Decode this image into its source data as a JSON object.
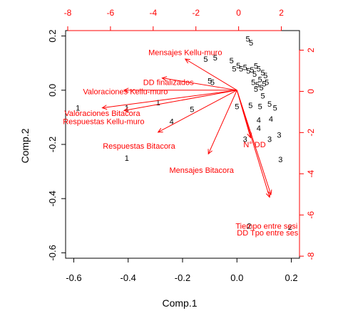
{
  "chart_data": {
    "type": "scatter",
    "subtype": "biplot",
    "title": "",
    "xlabel": "Comp.1",
    "ylabel": "Comp.2",
    "xlim": [
      -0.63,
      0.23
    ],
    "ylim": [
      -0.62,
      0.22
    ],
    "xticks": [
      "-0.6",
      "-0.4",
      "-0.2",
      "0.0",
      "0.2"
    ],
    "xtick_values": [
      -0.6,
      -0.4,
      -0.2,
      0.0,
      0.2
    ],
    "yticks": [
      "-0.6",
      "-0.4",
      "-0.2",
      "0.0",
      "0.2"
    ],
    "ytick_values": [
      -0.6,
      -0.4,
      -0.2,
      0.0,
      0.2
    ],
    "top_xlim": [
      -8.1,
      2.85
    ],
    "right_ylim": [
      -8.1,
      2.95
    ],
    "top_xticks": [
      "-8",
      "-6",
      "-4",
      "-2",
      "0",
      "2"
    ],
    "top_xtick_values": [
      -8,
      -6,
      -4,
      -2,
      0,
      2
    ],
    "right_yticks": [
      "-8",
      "-6",
      "-4",
      "-2",
      "0",
      "2"
    ],
    "right_ytick_values": [
      -8,
      -6,
      -4,
      -2,
      0,
      2
    ],
    "observation_color": "#000000",
    "loading_color": "#ff0000",
    "observations": [
      {
        "x": -0.585,
        "y": -0.065,
        "label": "1"
      },
      {
        "x": -0.405,
        "y": -0.065,
        "label": "1"
      },
      {
        "x": -0.29,
        "y": -0.045,
        "label": "1"
      },
      {
        "x": -0.405,
        "y": -0.25,
        "label": "1"
      },
      {
        "x": -0.24,
        "y": -0.115,
        "label": "4"
      },
      {
        "x": -0.165,
        "y": -0.07,
        "label": "5"
      },
      {
        "x": -0.115,
        "y": 0.115,
        "label": "5"
      },
      {
        "x": -0.08,
        "y": 0.12,
        "label": "5"
      },
      {
        "x": -0.02,
        "y": 0.11,
        "label": "5"
      },
      {
        "x": -0.01,
        "y": 0.08,
        "label": "5"
      },
      {
        "x": 0.005,
        "y": 0.092,
        "label": "5"
      },
      {
        "x": 0.015,
        "y": 0.08,
        "label": "5"
      },
      {
        "x": 0.03,
        "y": 0.085,
        "label": "5"
      },
      {
        "x": 0.042,
        "y": 0.072,
        "label": "5"
      },
      {
        "x": -0.1,
        "y": 0.035,
        "label": "5"
      },
      {
        "x": -0.09,
        "y": 0.03,
        "label": "5"
      },
      {
        "x": 0.0,
        "y": -0.06,
        "label": "5"
      },
      {
        "x": 0.04,
        "y": 0.19,
        "label": "5"
      },
      {
        "x": 0.052,
        "y": 0.175,
        "label": "5"
      },
      {
        "x": 0.055,
        "y": 0.075,
        "label": "5"
      },
      {
        "x": 0.07,
        "y": 0.09,
        "label": "5"
      },
      {
        "x": 0.065,
        "y": 0.06,
        "label": "5"
      },
      {
        "x": 0.08,
        "y": 0.08,
        "label": "5"
      },
      {
        "x": 0.095,
        "y": 0.065,
        "label": "5"
      },
      {
        "x": 0.105,
        "y": 0.055,
        "label": "5"
      },
      {
        "x": 0.085,
        "y": 0.04,
        "label": "5"
      },
      {
        "x": 0.06,
        "y": 0.03,
        "label": "5"
      },
      {
        "x": 0.075,
        "y": 0.02,
        "label": "5"
      },
      {
        "x": 0.09,
        "y": 0.01,
        "label": "5"
      },
      {
        "x": 0.1,
        "y": 0.025,
        "label": "5"
      },
      {
        "x": 0.11,
        "y": 0.03,
        "label": "5"
      },
      {
        "x": 0.07,
        "y": 0.005,
        "label": "5"
      },
      {
        "x": 0.095,
        "y": -0.02,
        "label": "5"
      },
      {
        "x": 0.05,
        "y": -0.055,
        "label": "5"
      },
      {
        "x": 0.085,
        "y": -0.06,
        "label": "5"
      },
      {
        "x": 0.12,
        "y": -0.05,
        "label": "5"
      },
      {
        "x": 0.14,
        "y": -0.065,
        "label": "5"
      },
      {
        "x": 0.08,
        "y": -0.11,
        "label": "4"
      },
      {
        "x": 0.08,
        "y": -0.14,
        "label": "4"
      },
      {
        "x": 0.125,
        "y": -0.105,
        "label": "4"
      },
      {
        "x": 0.03,
        "y": -0.18,
        "label": "3"
      },
      {
        "x": 0.12,
        "y": -0.18,
        "label": "3"
      },
      {
        "x": 0.155,
        "y": -0.165,
        "label": "3"
      },
      {
        "x": 0.16,
        "y": -0.255,
        "label": "3"
      },
      {
        "x": 0.045,
        "y": -0.5,
        "label": "2"
      },
      {
        "x": 0.195,
        "y": -0.505,
        "label": "2"
      }
    ],
    "loadings": [
      {
        "name": "Mensajes Kellu-muro",
        "x": -0.19,
        "y": 0.115
      },
      {
        "name": "DD finalizados",
        "x": -0.275,
        "y": 0.045
      },
      {
        "name": "Valoraciones Kellu-muro",
        "x": -0.415,
        "y": 0.0
      },
      {
        "name": "Valoraciones Bitacora",
        "x": -0.495,
        "y": -0.065
      },
      {
        "name": "Respuestas Kellu-muro",
        "x": -0.415,
        "y": -0.075
      },
      {
        "name": "Respuestas Bitacora",
        "x": -0.29,
        "y": -0.155
      },
      {
        "name": "Mensajes Bitacora",
        "x": -0.105,
        "y": -0.235
      },
      {
        "name": "N° DD",
        "x": 0.05,
        "y": -0.175
      },
      {
        "name": "Tiempo entre sesi",
        "x": 0.12,
        "y": -0.395
      },
      {
        "name": "DD Tpo entre ses",
        "x": 0.125,
        "y": -0.385
      }
    ],
    "loading_labels": [
      {
        "name": "Mensajes Kellu-muro",
        "x": -0.19,
        "y": 0.14,
        "anchor": "middle"
      },
      {
        "name": "DD finalizados",
        "x": -0.345,
        "y": 0.03,
        "anchor": "start"
      },
      {
        "name": "Valoraciones Kellu-muro",
        "x": -0.41,
        "y": -0.005,
        "anchor": "middle"
      },
      {
        "name": "Valoraciones Bitacora",
        "x": -0.495,
        "y": -0.085,
        "anchor": "middle"
      },
      {
        "name": "Respuestas Kellu-muro",
        "x": -0.49,
        "y": -0.115,
        "anchor": "middle"
      },
      {
        "name": "Respuestas Bitacora",
        "x": -0.36,
        "y": -0.205,
        "anchor": "middle"
      },
      {
        "name": "Mensajes Bitacora",
        "x": -0.13,
        "y": -0.295,
        "anchor": "middle"
      },
      {
        "name": "N° DD",
        "x": 0.065,
        "y": -0.2,
        "anchor": "middle"
      },
      {
        "name": "Tiempo entre sesi",
        "x": -0.005,
        "y": -0.5,
        "anchor": "start"
      },
      {
        "name": "DD Tpo entre ses",
        "x": 0.0,
        "y": -0.525,
        "anchor": "start"
      }
    ]
  }
}
